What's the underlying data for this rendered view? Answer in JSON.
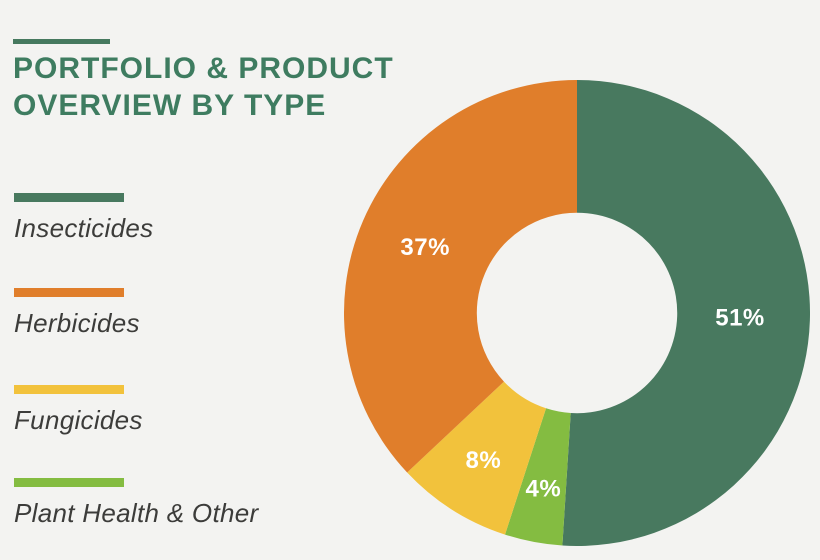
{
  "header": {
    "title_line1": "PORTFOLIO & PRODUCT",
    "title_line2": "OVERVIEW BY TYPE"
  },
  "palette": {
    "background": "#F3F3F1",
    "title_green": "#3E7C60",
    "accent_rule": "#46795F",
    "legend_text": "#3C3C3A"
  },
  "chart_data": {
    "type": "pie",
    "subtype": "donut",
    "title": "PORTFOLIO & PRODUCT OVERVIEW BY TYPE",
    "categories": [
      "Insecticides",
      "Herbicides",
      "Fungicides",
      "Plant Health & Other"
    ],
    "values": [
      51,
      37,
      8,
      4
    ],
    "segments": [
      {
        "label": "Insecticides",
        "value": 51,
        "data_label": "51%",
        "color": "#48795F",
        "label_radius_ratio": 0.7
      },
      {
        "label": "Herbicides",
        "value": 37,
        "data_label": "37%",
        "color": "#E07E2B",
        "label_radius_ratio": 0.71
      },
      {
        "label": "Fungicides",
        "value": 8,
        "data_label": "8%",
        "color": "#F2C23C",
        "label_radius_ratio": 0.75
      },
      {
        "label": "Plant Health & Other",
        "value": 4,
        "data_label": "4%",
        "color": "#84BC41",
        "label_radius_ratio": 0.77
      }
    ],
    "draw_order_clockwise_from_top": [
      0,
      3,
      2,
      1
    ],
    "start_angle_deg": 0,
    "inner_radius_ratio": 0.43,
    "legend_position": "left",
    "data_label_color": "#FFFFFF"
  }
}
